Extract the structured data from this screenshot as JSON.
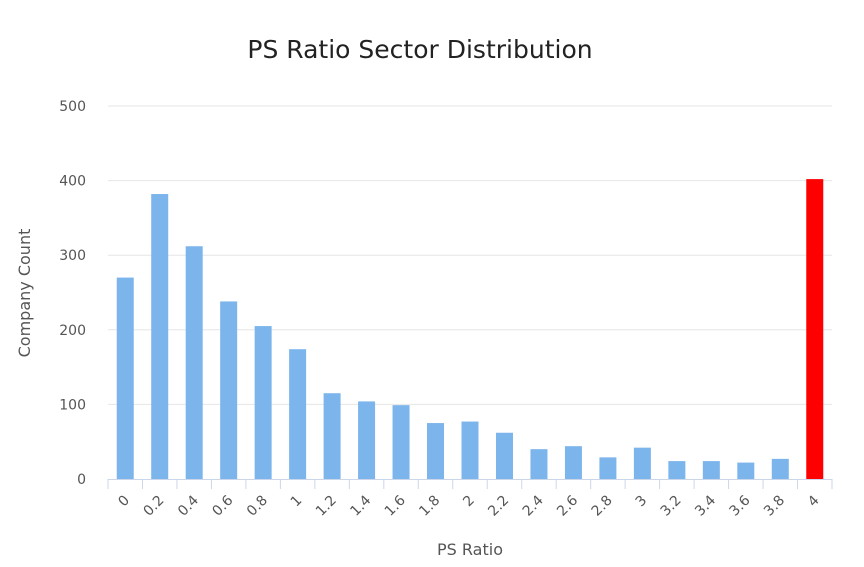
{
  "chart_data": {
    "type": "bar",
    "title": "PS Ratio Sector Distribution",
    "xlabel": "PS Ratio",
    "ylabel": "Company Count",
    "ylim": [
      0,
      500
    ],
    "yticks": [
      0,
      100,
      200,
      300,
      400,
      500
    ],
    "grid": true,
    "legend": "none",
    "categories": [
      "0",
      "0.2",
      "0.4",
      "0.6",
      "0.8",
      "1",
      "1.2",
      "1.4",
      "1.6",
      "1.8",
      "2",
      "2.2",
      "2.4",
      "2.6",
      "2.8",
      "3",
      "3.2",
      "3.4",
      "3.6",
      "3.8",
      "4"
    ],
    "values": [
      270,
      382,
      312,
      238,
      205,
      174,
      115,
      104,
      99,
      75,
      77,
      62,
      40,
      44,
      29,
      42,
      24,
      24,
      22,
      27,
      402
    ],
    "colors": {
      "default": "#7cb5ec",
      "highlight": "#ff0000"
    },
    "highlight_index": 20
  }
}
